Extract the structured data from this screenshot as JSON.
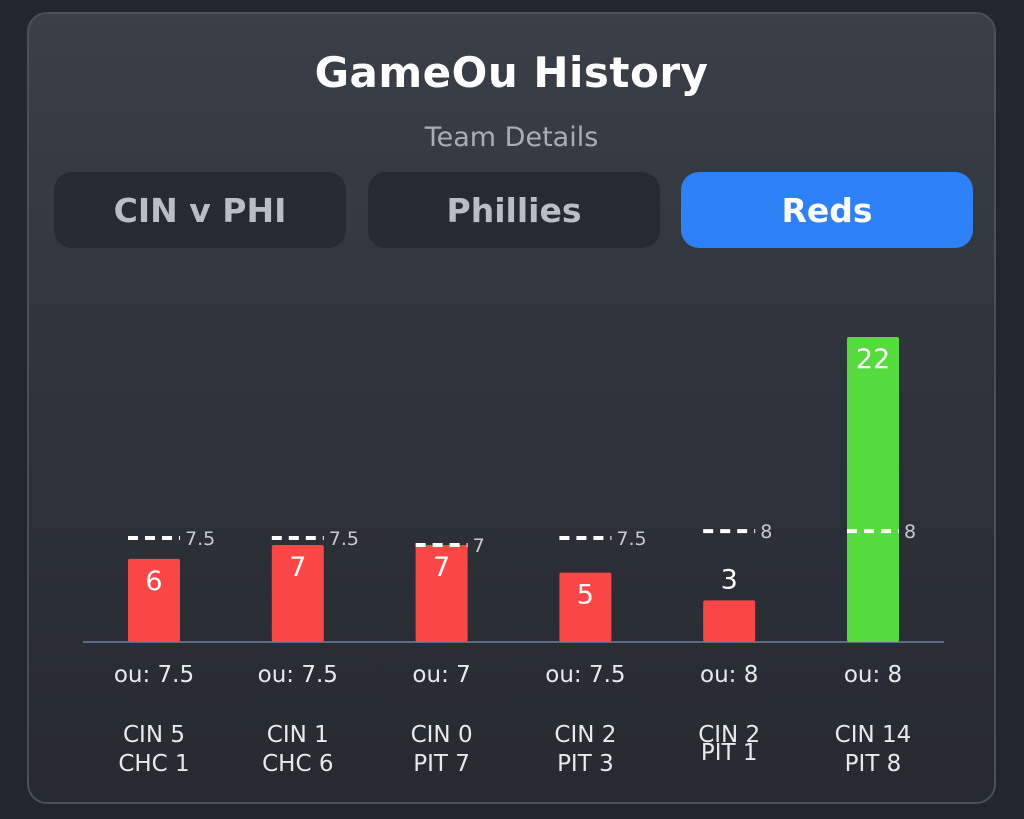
{
  "header": {
    "title": "GameOu History",
    "subtitle": "Team Details"
  },
  "tabs": [
    {
      "label": "CIN v PHI",
      "active": false
    },
    {
      "label": "Phillies",
      "active": false
    },
    {
      "label": "Reds",
      "active": true
    }
  ],
  "colors": {
    "under": "#fb4646",
    "over": "#55db3d",
    "tab_active": "#2d80f5",
    "line": "#ffffff"
  },
  "chart_data": {
    "type": "bar",
    "title": "",
    "xlabel": "",
    "ylabel": "",
    "ylim": [
      0,
      22
    ],
    "grid": false,
    "categories": [
      "ou: 7.5",
      "ou: 7.5",
      "ou: 7",
      "ou: 7.5",
      "ou: 8",
      "ou: 8"
    ],
    "values": [
      6,
      7,
      7,
      5,
      3,
      22
    ],
    "ou_lines": [
      7.5,
      7.5,
      7,
      7.5,
      8,
      8
    ],
    "ou_line_labels": [
      "7.5",
      "7.5",
      "7",
      "7.5",
      "8",
      "8"
    ],
    "value_labels": [
      "6",
      "7",
      "7",
      "5",
      "3",
      "22"
    ],
    "results": [
      "under",
      "under",
      "under",
      "under",
      "under",
      "over"
    ],
    "games": [
      {
        "line1": "CIN 5",
        "line2": "CHC 1"
      },
      {
        "line1": "CIN 1",
        "line2": "CHC 6"
      },
      {
        "line1": "CIN 0",
        "line2": "PIT 7"
      },
      {
        "line1": "CIN 2",
        "line2": "PIT 3"
      },
      {
        "line1": "CIN 2",
        "line2": "PIT 1"
      },
      {
        "line1": "CIN 14",
        "line2": "PIT 8"
      }
    ]
  }
}
